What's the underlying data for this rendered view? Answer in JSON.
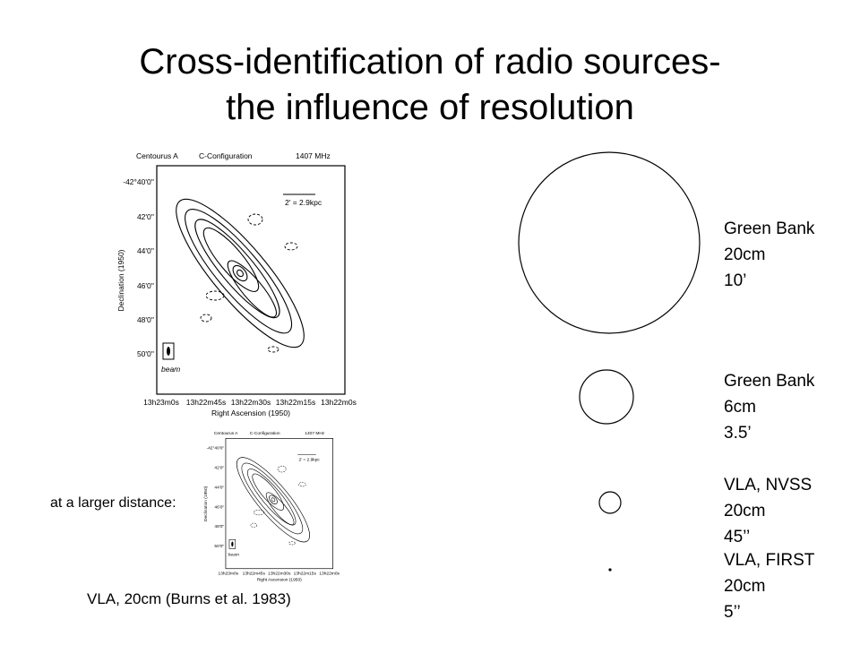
{
  "title": {
    "lines": [
      "Cross-identification of radio sources-",
      "the influence of resolution"
    ]
  },
  "figure": {
    "header": [
      "Centourus A",
      "C-Configuration",
      "1407 MHz"
    ],
    "scale": "2' = 2.9kpc",
    "beam": "beam",
    "y_label": "Declination (1950)",
    "x_label": "Right Ascension (1950)",
    "y_ticks": [
      "-42°40'0''",
      "42'0''",
      "44'0''",
      "46'0''",
      "48'0''",
      "50'0''"
    ],
    "x_ticks": [
      "13h23m0s",
      "13h22m45s",
      "13h22m30s",
      "13h22m15s",
      "13h22m0s"
    ]
  },
  "side_label": "at a larger distance:",
  "caption": "VLA, 20cm (Burns et al. 1983)",
  "beams": [
    {
      "lines": [
        "Green Bank",
        "20cm",
        "10’"
      ]
    },
    {
      "lines": [
        "Green Bank",
        "6cm",
        "3.5’"
      ]
    },
    {
      "lines": [
        "VLA, NVSS",
        "20cm",
        "45’’"
      ]
    },
    {
      "lines": [
        "VLA, FIRST",
        "20cm",
        "5’’"
      ]
    }
  ]
}
